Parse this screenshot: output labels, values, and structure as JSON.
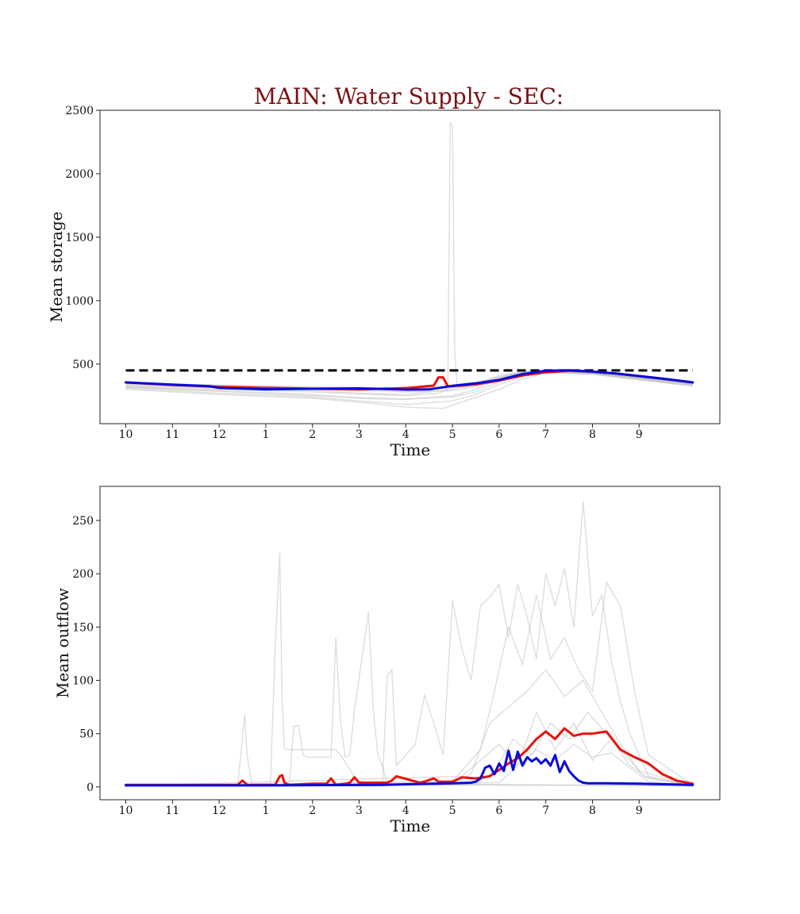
{
  "title": "MAIN: Water Supply - SEC:",
  "colors": {
    "title": "#7a1216",
    "background_runs": "#bdbdbd",
    "red_series": "#e8120c",
    "blue_series": "#0a0ad8",
    "threshold": "#000000"
  },
  "chart_data": [
    {
      "type": "line",
      "xlabel": "Time",
      "ylabel": "Mean storage",
      "x_tick_labels": [
        "10",
        "11",
        "12",
        "1",
        "2",
        "3",
        "4",
        "5",
        "6",
        "7",
        "8",
        "9"
      ],
      "y_ticks": [
        500,
        1000,
        1500,
        2000,
        2500
      ],
      "ylim": [
        30,
        2500
      ],
      "x_range": [
        0,
        12.15
      ],
      "grid": false,
      "threshold": {
        "style": "dashed",
        "y": 450
      },
      "series": [
        {
          "role": "red",
          "x": [
            0,
            1,
            2,
            3,
            4,
            5,
            6,
            6.6,
            6.7,
            6.8,
            6.9,
            7,
            7.5,
            8,
            8.5,
            9,
            9.5,
            10,
            10.5,
            11,
            11.5,
            12.15
          ],
          "y": [
            355,
            335,
            320,
            312,
            305,
            300,
            310,
            330,
            395,
            395,
            325,
            325,
            340,
            370,
            410,
            435,
            448,
            440,
            425,
            405,
            385,
            355
          ]
        },
        {
          "role": "blue",
          "x": [
            0,
            1,
            1.8,
            2,
            3,
            4,
            5,
            6,
            6.5,
            7,
            7.5,
            8,
            8.5,
            9,
            9.5,
            10,
            10.5,
            11,
            11.5,
            12.15
          ],
          "y": [
            355,
            338,
            325,
            312,
            300,
            305,
            308,
            298,
            300,
            328,
            348,
            375,
            420,
            448,
            450,
            440,
            425,
            405,
            385,
            355
          ]
        },
        {
          "role": "background",
          "x": [
            0,
            2,
            4,
            5,
            6,
            7,
            7.5,
            8,
            8.5,
            9,
            10,
            12.15
          ],
          "y": [
            330,
            310,
            290,
            270,
            260,
            300,
            340,
            410,
            440,
            450,
            430,
            350
          ]
        },
        {
          "role": "background",
          "x": [
            0,
            2,
            4,
            5,
            6,
            7,
            7.5,
            8,
            8.5,
            9,
            10,
            12.15
          ],
          "y": [
            320,
            290,
            260,
            230,
            220,
            250,
            300,
            380,
            430,
            445,
            425,
            340
          ]
        },
        {
          "role": "background",
          "x": [
            0,
            2,
            4,
            5,
            6,
            7,
            7.5,
            8,
            8.5,
            9,
            10,
            12.15
          ],
          "y": [
            310,
            270,
            240,
            210,
            180,
            210,
            260,
            340,
            400,
            435,
            420,
            330
          ]
        },
        {
          "role": "background",
          "x": [
            0,
            2,
            4,
            5,
            6,
            6.8,
            7.2,
            8,
            8.5,
            9,
            10,
            12.15
          ],
          "y": [
            300,
            260,
            230,
            200,
            160,
            150,
            200,
            300,
            380,
            430,
            420,
            325
          ]
        },
        {
          "role": "background",
          "x": [
            0,
            2,
            4,
            5,
            6,
            7,
            7.5,
            8,
            8.5,
            9,
            10,
            12.15
          ],
          "y": [
            340,
            320,
            300,
            290,
            280,
            290,
            320,
            380,
            430,
            448,
            430,
            345
          ]
        },
        {
          "role": "background",
          "x": [
            0,
            2,
            4,
            5,
            6,
            6.7,
            6.9,
            6.95,
            7.0,
            7.05,
            7.1,
            7.2,
            7.5,
            8,
            8.5,
            9,
            10,
            12.15
          ],
          "y": [
            325,
            300,
            280,
            265,
            250,
            270,
            300,
            2400,
            2380,
            600,
            330,
            320,
            330,
            390,
            430,
            448,
            430,
            340
          ]
        },
        {
          "role": "background",
          "x": [
            0,
            2,
            4,
            5,
            6,
            7,
            7.5,
            8,
            8.5,
            9,
            10,
            12.15
          ],
          "y": [
            345,
            330,
            315,
            305,
            295,
            310,
            340,
            395,
            435,
            450,
            432,
            352
          ]
        },
        {
          "role": "background",
          "x": [
            0,
            2,
            4,
            5,
            6,
            7,
            7.5,
            8,
            8.5,
            9,
            10,
            12.15
          ],
          "y": [
            315,
            285,
            250,
            235,
            225,
            240,
            280,
            360,
            415,
            440,
            422,
            335
          ]
        },
        {
          "role": "background",
          "x": [
            0,
            2,
            4,
            5,
            6,
            7,
            7.5,
            8,
            8.5,
            9,
            10,
            12.15
          ],
          "y": [
            350,
            335,
            320,
            315,
            310,
            320,
            350,
            400,
            438,
            450,
            435,
            355
          ]
        }
      ]
    },
    {
      "type": "line",
      "xlabel": "Time",
      "ylabel": "Mean outflow",
      "x_tick_labels": [
        "10",
        "11",
        "12",
        "1",
        "2",
        "3",
        "4",
        "5",
        "6",
        "7",
        "8",
        "9"
      ],
      "y_ticks": [
        0,
        50,
        100,
        150,
        200,
        250
      ],
      "ylim": [
        -12,
        282
      ],
      "x_range": [
        0,
        12.15
      ],
      "grid": false,
      "series": [
        {
          "role": "red",
          "x": [
            0,
            2,
            2.4,
            2.5,
            2.6,
            3.2,
            3.3,
            3.35,
            3.4,
            3.5,
            4,
            4.3,
            4.4,
            4.5,
            4.7,
            4.8,
            4.9,
            5,
            5.6,
            5.7,
            5.8,
            6.3,
            6.4,
            6.6,
            6.7,
            7,
            7.2,
            7.5,
            7.8,
            8.0,
            8.2,
            8.4,
            8.6,
            8.8,
            9,
            9.2,
            9.4,
            9.6,
            9.8,
            10,
            10.3,
            10.6,
            10.9,
            11.2,
            11.5,
            11.8,
            12.15
          ],
          "y": [
            2,
            2,
            2,
            6,
            2,
            2,
            10,
            11,
            4,
            2,
            3,
            3,
            8,
            2,
            3,
            4,
            9,
            4,
            4,
            6,
            10,
            4,
            5,
            8,
            5,
            5,
            9,
            8,
            10,
            16,
            22,
            27,
            35,
            45,
            52,
            45,
            55,
            48,
            50,
            50,
            52,
            35,
            28,
            22,
            12,
            6,
            3
          ]
        },
        {
          "role": "blue",
          "x": [
            0,
            3,
            5.5,
            7,
            7.4,
            7.5,
            7.6,
            7.7,
            7.8,
            7.9,
            8.0,
            8.1,
            8.2,
            8.3,
            8.4,
            8.5,
            8.6,
            8.7,
            8.8,
            8.9,
            9.0,
            9.1,
            9.2,
            9.3,
            9.4,
            9.5,
            9.6,
            9.7,
            9.8,
            9.9,
            10.0,
            10.3,
            11,
            12.15
          ],
          "y": [
            1.5,
            1.5,
            2,
            3.5,
            4,
            5,
            8,
            18,
            20,
            12,
            22,
            15,
            34,
            16,
            33,
            20,
            28,
            24,
            27,
            22,
            26,
            20,
            30,
            14,
            24,
            15,
            10,
            6,
            4,
            3.5,
            3.5,
            3.5,
            3,
            2
          ]
        },
        {
          "role": "background",
          "x": [
            0,
            2.4,
            2.5,
            2.55,
            2.6,
            2.7,
            3.1,
            3.2,
            3.3,
            3.35,
            3.4,
            3.5,
            4.5,
            4.6,
            5,
            6,
            12.15
          ],
          "y": [
            1,
            1,
            46,
            68,
            30,
            3,
            3,
            130,
            220,
            80,
            36,
            35,
            35,
            30,
            3,
            2,
            1
          ]
        },
        {
          "role": "background",
          "x": [
            0,
            3.5,
            3.6,
            3.7,
            3.8,
            3.9,
            4,
            4.4,
            4.5,
            4.6,
            4.7,
            4.8,
            4.9,
            5.2,
            5.3,
            5.4,
            5.5,
            5.6,
            12.15
          ],
          "y": [
            1,
            1,
            57,
            58,
            30,
            28,
            28,
            28,
            140,
            62,
            28,
            30,
            72,
            164,
            75,
            30,
            20,
            3,
            1
          ]
        },
        {
          "role": "background",
          "x": [
            0,
            5.5,
            5.6,
            5.7,
            5.8,
            6.0,
            6.2,
            6.4,
            6.6,
            6.8,
            7.0,
            7.2,
            7.4,
            7.6,
            7.8,
            8.0,
            8.2,
            8.4,
            8.6,
            8.8,
            9.0,
            9.2,
            9.4,
            9.6,
            9.8,
            10.0,
            10.2,
            10.4,
            10.6,
            10.8,
            11.0,
            11.2,
            12.15
          ],
          "y": [
            1,
            1,
            104,
            110,
            20,
            30,
            40,
            86,
            60,
            30,
            175,
            130,
            100,
            170,
            178,
            190,
            140,
            190,
            160,
            120,
            200,
            170,
            205,
            150,
            268,
            160,
            180,
            120,
            80,
            50,
            30,
            10,
            1
          ]
        },
        {
          "role": "background",
          "x": [
            0,
            7.0,
            7.3,
            7.6,
            7.9,
            8.2,
            8.5,
            8.8,
            9.1,
            9.4,
            9.7,
            10.0,
            10.3,
            10.6,
            10.9,
            11.2,
            12.15
          ],
          "y": [
            1,
            5,
            20,
            35,
            90,
            150,
            115,
            180,
            120,
            140,
            110,
            90,
            192,
            170,
            90,
            30,
            2
          ]
        },
        {
          "role": "background",
          "x": [
            0,
            7.0,
            7.4,
            7.8,
            8.2,
            8.6,
            9.0,
            9.4,
            9.8,
            10.2,
            10.6,
            11.0,
            12.15
          ],
          "y": [
            1,
            4,
            12,
            60,
            75,
            90,
            110,
            85,
            100,
            70,
            40,
            15,
            1
          ]
        },
        {
          "role": "background",
          "x": [
            0,
            7.5,
            7.9,
            8.3,
            8.7,
            9.1,
            9.5,
            9.9,
            10.3,
            10.7,
            11.1,
            12.15
          ],
          "y": [
            1,
            2,
            15,
            45,
            30,
            60,
            45,
            70,
            50,
            30,
            10,
            1
          ]
        },
        {
          "role": "background",
          "x": [
            0,
            7.2,
            7.6,
            8.0,
            8.4,
            8.8,
            9.2,
            9.6,
            10.0,
            10.4,
            10.8,
            11.2,
            12.15
          ],
          "y": [
            1,
            10,
            25,
            40,
            20,
            70,
            35,
            60,
            25,
            45,
            20,
            8,
            1
          ]
        },
        {
          "role": "background",
          "x": [
            0,
            8.0,
            8.4,
            8.8,
            9.2,
            9.6,
            10.0,
            10.4,
            10.8,
            11.2,
            12.15
          ],
          "y": [
            1,
            4,
            20,
            35,
            25,
            40,
            28,
            32,
            18,
            5,
            1
          ]
        }
      ]
    }
  ]
}
